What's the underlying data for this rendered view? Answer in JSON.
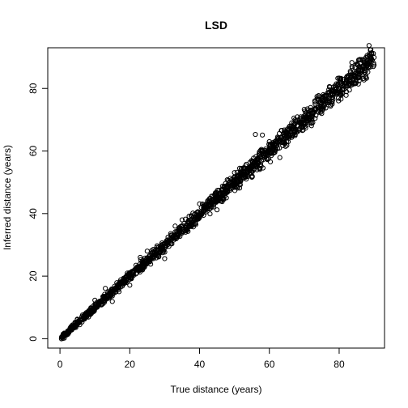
{
  "chart_data": {
    "type": "scatter",
    "title": "LSD",
    "xlabel": "True distance (years)",
    "ylabel": "Inferred distance (years)",
    "xlim": [
      -3.5,
      93
    ],
    "ylim": [
      -3,
      93
    ],
    "xticks": [
      0,
      20,
      40,
      60,
      80
    ],
    "yticks": [
      0,
      20,
      40,
      60,
      80
    ],
    "grid": false,
    "legend": "none",
    "marker": "open-circle",
    "color": "#000000",
    "series": [
      {
        "points": [
          [
            0.5,
            0.6
          ],
          [
            1,
            0.7
          ],
          [
            1.5,
            1.6
          ],
          [
            2,
            1.9
          ],
          [
            2.5,
            2.4
          ],
          [
            3,
            3.3
          ],
          [
            4,
            4.1
          ],
          [
            5,
            4.9
          ],
          [
            6,
            6.2
          ],
          [
            7,
            7.0
          ],
          [
            8,
            7.8
          ],
          [
            9,
            9.1
          ],
          [
            10,
            9.7
          ],
          [
            11,
            11.2
          ],
          [
            12,
            11.8
          ],
          [
            13,
            13.3
          ],
          [
            14,
            13.9
          ],
          [
            15,
            15.1
          ],
          [
            16,
            16.3
          ],
          [
            17,
            16.8
          ],
          [
            18,
            18.2
          ],
          [
            19,
            19.0
          ],
          [
            20,
            20.1
          ],
          [
            21,
            20.9
          ],
          [
            22,
            22.3
          ],
          [
            23,
            22.8
          ],
          [
            24,
            24.2
          ],
          [
            25,
            25.0
          ],
          [
            26,
            25.7
          ],
          [
            27,
            27.2
          ],
          [
            28,
            28.1
          ],
          [
            29,
            28.8
          ],
          [
            30,
            30.3
          ],
          [
            31,
            31.0
          ],
          [
            32,
            31.8
          ],
          [
            33,
            33.1
          ],
          [
            34,
            34.2
          ],
          [
            35,
            34.9
          ],
          [
            36,
            36.1
          ],
          [
            37,
            37.2
          ],
          [
            38,
            37.9
          ],
          [
            39,
            39.3
          ],
          [
            40,
            40.1
          ],
          [
            41,
            40.8
          ],
          [
            42,
            42.2
          ],
          [
            43,
            43.0
          ],
          [
            44,
            43.8
          ],
          [
            45,
            45.2
          ],
          [
            46,
            46.1
          ],
          [
            47,
            46.9
          ],
          [
            48,
            48.2
          ],
          [
            49,
            49.0
          ],
          [
            50,
            49.8
          ],
          [
            51,
            51.3
          ],
          [
            52,
            52.1
          ],
          [
            53,
            52.8
          ],
          [
            54,
            54.2
          ],
          [
            55,
            55.0
          ],
          [
            56,
            55.9
          ],
          [
            57,
            57.1
          ],
          [
            58,
            58.0
          ],
          [
            59,
            58.9
          ],
          [
            60,
            60.2
          ],
          [
            61,
            61.0
          ],
          [
            62,
            61.9
          ],
          [
            63,
            63.1
          ],
          [
            64,
            64.0
          ],
          [
            65,
            64.9
          ],
          [
            66,
            66.1
          ],
          [
            67,
            67.0
          ],
          [
            68,
            67.9
          ],
          [
            69,
            69.2
          ],
          [
            70,
            70.0
          ],
          [
            71,
            70.8
          ],
          [
            72,
            72.1
          ],
          [
            73,
            73.0
          ],
          [
            74,
            73.9
          ],
          [
            75,
            75.1
          ],
          [
            76,
            76.0
          ],
          [
            77,
            76.8
          ],
          [
            78,
            78.1
          ],
          [
            79,
            79.0
          ],
          [
            80,
            79.9
          ],
          [
            81,
            81.1
          ],
          [
            82,
            82.0
          ],
          [
            83,
            82.9
          ],
          [
            84,
            84.1
          ],
          [
            85,
            85.0
          ],
          [
            86,
            85.8
          ],
          [
            87,
            87.1
          ],
          [
            88,
            88.0
          ],
          [
            89,
            88.8
          ],
          [
            90,
            89.9
          ],
          [
            10,
            12.3
          ],
          [
            15,
            11.9
          ],
          [
            20,
            17.1
          ],
          [
            25,
            28.0
          ],
          [
            30,
            25.6
          ],
          [
            35,
            38.0
          ],
          [
            40,
            43.1
          ],
          [
            45,
            41.2
          ],
          [
            50,
            53.1
          ],
          [
            55,
            51.6
          ],
          [
            56,
            65.3
          ],
          [
            58,
            65.1
          ],
          [
            60,
            63.0
          ],
          [
            65,
            61.8
          ],
          [
            70,
            73.3
          ],
          [
            75,
            72.0
          ],
          [
            80,
            83.3
          ],
          [
            85,
            87.8
          ],
          [
            88,
            90.5
          ],
          [
            82,
            77.8
          ],
          [
            43,
            39.9
          ],
          [
            33,
            36.0
          ],
          [
            23,
            26.0
          ],
          [
            13,
            16.1
          ],
          [
            63,
            57.9
          ],
          [
            68,
            70.9
          ],
          [
            78,
            75.0
          ],
          [
            86,
            89.2
          ],
          [
            90,
            87.5
          ],
          [
            72,
            69.0
          ]
        ]
      }
    ]
  }
}
